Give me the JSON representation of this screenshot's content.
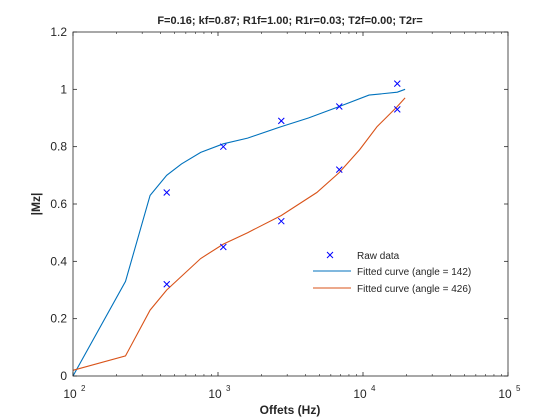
{
  "chart_data": {
    "type": "line",
    "title": "F=0.16; kf=0.87; R1f=1.00; R1r=0.03; T2f=0.00; T2r=",
    "xlabel": "Offets (Hz)",
    "ylabel": "|Mz|",
    "xscale": "log",
    "xlim": [
      100,
      100000
    ],
    "ylim": [
      0,
      1.2
    ],
    "x_ticks": [
      {
        "base": "10",
        "exp": "2",
        "value": 100
      },
      {
        "base": "10",
        "exp": "3",
        "value": 1000
      },
      {
        "base": "10",
        "exp": "4",
        "value": 10000
      },
      {
        "base": "10",
        "exp": "5",
        "value": 100000
      }
    ],
    "y_ticks": [
      "0",
      "0.2",
      "0.4",
      "0.6",
      "0.8",
      "1",
      "1.2"
    ],
    "y_tick_values": [
      0,
      0.2,
      0.4,
      0.6,
      0.8,
      1.0,
      1.2
    ],
    "grid": false,
    "legend_position": "center-right",
    "colors": {
      "raw": "#0000ff",
      "fit1": "#0072bd",
      "fit2": "#d95319",
      "axis": "#262626"
    },
    "series": [
      {
        "name": "Raw data",
        "style": "markers-x",
        "x": [
          443,
          1088,
          2732,
          6862,
          17235,
          443,
          1088,
          2732,
          6862,
          17235
        ],
        "y": [
          0.64,
          0.8,
          0.89,
          0.94,
          1.02,
          0.32,
          0.45,
          0.54,
          0.72,
          0.93
        ]
      },
      {
        "name": "Fitted curve (angle = 142)",
        "style": "line",
        "x": [
          100,
          230,
          340,
          443,
          560,
          760,
          1088,
          1600,
          2732,
          4200,
          6862,
          11000,
          17235,
          19500
        ],
        "y": [
          0.0,
          0.33,
          0.63,
          0.7,
          0.74,
          0.78,
          0.81,
          0.83,
          0.87,
          0.9,
          0.94,
          0.98,
          0.99,
          1.0
        ]
      },
      {
        "name": "Fitted curve (angle = 426)",
        "style": "line",
        "x": [
          100,
          230,
          340,
          443,
          760,
          1088,
          1600,
          2732,
          4800,
          6862,
          9500,
          12500,
          17235,
          19500
        ],
        "y": [
          0.02,
          0.07,
          0.23,
          0.3,
          0.41,
          0.46,
          0.5,
          0.56,
          0.64,
          0.71,
          0.79,
          0.87,
          0.94,
          0.97
        ]
      }
    ]
  }
}
